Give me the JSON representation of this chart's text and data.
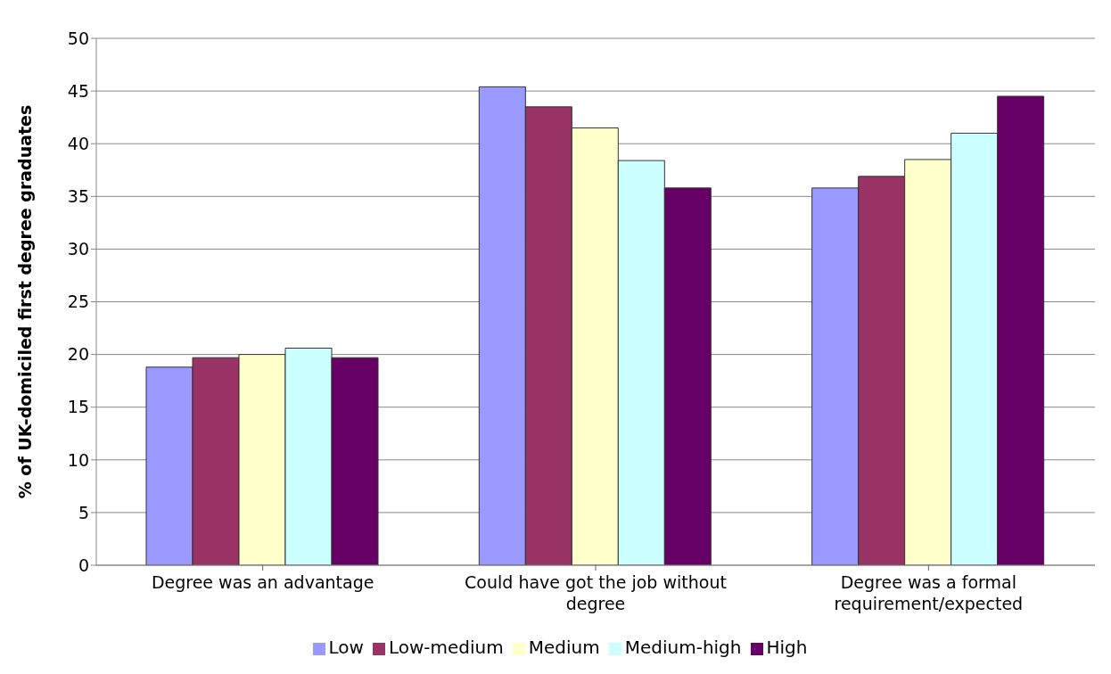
{
  "chart_data": {
    "type": "bar",
    "ylabel": "% of UK-domiciled first degree graduates",
    "categories": [
      "Degree was an advantage",
      "Could have got the job without degree",
      "Degree was a formal requirement/expected"
    ],
    "series": [
      {
        "name": "Low",
        "color": "#9999ff",
        "values": [
          18.8,
          45.4,
          35.8
        ]
      },
      {
        "name": "Low-medium",
        "color": "#993366",
        "values": [
          19.7,
          43.5,
          36.9
        ]
      },
      {
        "name": "Medium",
        "color": "#ffffcc",
        "values": [
          20.0,
          41.5,
          38.5
        ]
      },
      {
        "name": "Medium-high",
        "color": "#ccffff",
        "values": [
          20.6,
          38.4,
          41.0
        ]
      },
      {
        "name": "High",
        "color": "#660066",
        "values": [
          19.7,
          35.8,
          44.5
        ]
      }
    ],
    "ylim": [
      0,
      50
    ],
    "yticks": [
      0,
      5,
      10,
      15,
      20,
      25,
      30,
      35,
      40,
      45,
      50
    ],
    "grid": "y",
    "legend": "bottom"
  }
}
